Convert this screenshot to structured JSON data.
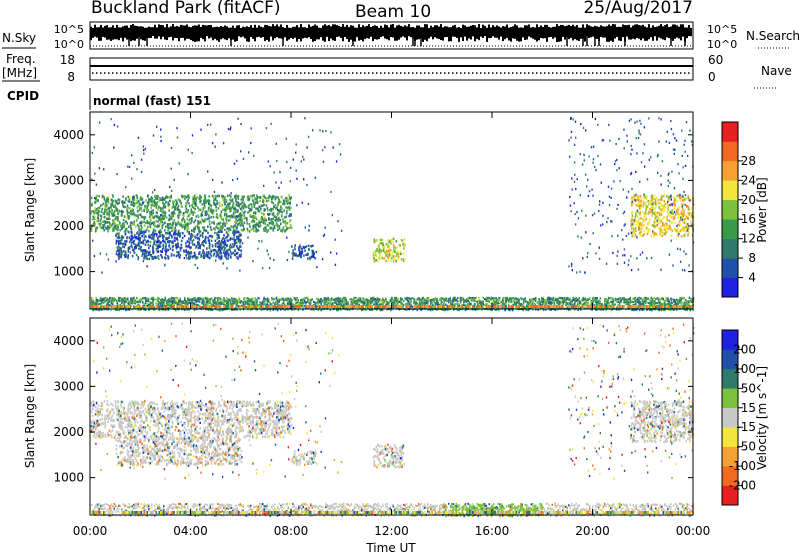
{
  "header": {
    "radar": "Buckland Park (fitACF)",
    "beam": "Beam 10",
    "date": "25/Aug/2017"
  },
  "noise_panel": {
    "left_label": "N.Sky",
    "right_label": "N.Search",
    "ticks": [
      "10^5",
      "10^0"
    ]
  },
  "freq_panel": {
    "left_label_line1": "Freq.",
    "left_label_line2": "[MHz]",
    "left_ticks": [
      "18",
      "8"
    ],
    "right_label": "Nave",
    "right_ticks": [
      "60",
      "0"
    ]
  },
  "cpid": {
    "label": "CPID",
    "value": "normal (fast) 151"
  },
  "time_axis": {
    "title": "Time UT",
    "ticks": [
      "00:00",
      "04:00",
      "08:00",
      "12:00",
      "16:00",
      "20:00",
      "00:00"
    ]
  },
  "range_axis": {
    "title": "Slant Range [km]",
    "ticks": [
      "1000",
      "2000",
      "3000",
      "4000"
    ]
  },
  "power_scale": {
    "title": "Power [dB]",
    "ticks": [
      "4",
      "8",
      "12",
      "16",
      "20",
      "24",
      "28"
    ],
    "colors": [
      "#2020e0",
      "#2050a8",
      "#2f7a6a",
      "#3a9a4a",
      "#7cc23c",
      "#f2e63c",
      "#f5a032",
      "#f06a22",
      "#e82020"
    ]
  },
  "velocity_scale": {
    "title": "Velocity [m s^-1]",
    "ticks": [
      "-200",
      "-100",
      "-50",
      "-15",
      "15",
      "50",
      "100",
      "200"
    ],
    "colors": [
      "#e82020",
      "#f06a22",
      "#f5a032",
      "#f2e63c",
      "#c8c8c8",
      "#7cc23c",
      "#2f7a6a",
      "#2050a8",
      "#2020e0"
    ]
  },
  "chart_data": [
    {
      "type": "heatmap",
      "title": "Power",
      "xlabel": "Time UT",
      "ylabel": "Slant Range [km]",
      "xlim": [
        "00:00",
        "24:00"
      ],
      "ylim": [
        180,
        4500
      ],
      "colorbar": {
        "label": "Power [dB]",
        "range": [
          0,
          32
        ]
      },
      "echo_regions": [
        {
          "time": [
            "00:00",
            "08:00"
          ],
          "range_km": [
            1900,
            2700
          ],
          "power_db": 12
        },
        {
          "time": [
            "01:00",
            "06:00"
          ],
          "range_km": [
            1300,
            1900
          ],
          "power_db": 6
        },
        {
          "time": [
            "08:00",
            "09:00"
          ],
          "range_km": [
            1300,
            1600
          ],
          "power_db": 6
        },
        {
          "time": [
            "11:15",
            "12:30"
          ],
          "range_km": [
            1250,
            1750
          ],
          "power_db": 18
        },
        {
          "time": [
            "21:30",
            "24:00"
          ],
          "range_km": [
            1800,
            2700
          ],
          "power_db": 20
        },
        {
          "time": [
            "00:00",
            "24:00"
          ],
          "range_km": [
            180,
            450
          ],
          "power_db": 10
        }
      ]
    },
    {
      "type": "heatmap",
      "title": "Velocity",
      "xlabel": "Time UT",
      "ylabel": "Slant Range [km]",
      "xlim": [
        "00:00",
        "24:00"
      ],
      "ylim": [
        180,
        4500
      ],
      "colorbar": {
        "label": "Velocity [m s^-1]",
        "range": [
          -250,
          250
        ]
      },
      "echo_regions": [
        {
          "time": [
            "00:00",
            "08:00"
          ],
          "range_km": [
            1900,
            2700
          ],
          "velocity_ms": 0
        },
        {
          "time": [
            "01:00",
            "06:00"
          ],
          "range_km": [
            1300,
            1900
          ],
          "velocity_ms": 0
        },
        {
          "time": [
            "08:00",
            "09:00"
          ],
          "range_km": [
            1300,
            1600
          ],
          "velocity_ms": 0
        },
        {
          "time": [
            "11:15",
            "12:30"
          ],
          "range_km": [
            1250,
            1750
          ],
          "velocity_ms": 0
        },
        {
          "time": [
            "21:30",
            "24:00"
          ],
          "range_km": [
            1800,
            2700
          ],
          "velocity_ms": 0
        },
        {
          "time": [
            "14:00",
            "18:00"
          ],
          "range_km": [
            180,
            400
          ],
          "velocity_ms": 40
        }
      ]
    }
  ]
}
